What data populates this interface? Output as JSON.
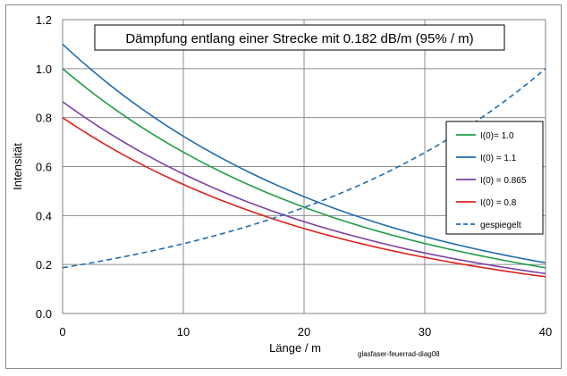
{
  "chart_data": {
    "type": "line",
    "title": "Dämpfung entlang einer Strecke mit 0.182 dB/m  (95% / m)",
    "xlabel": "Länge / m",
    "ylabel": "Intensität",
    "xlim": [
      0,
      40
    ],
    "ylim": [
      0,
      1.2
    ],
    "xticks": [
      "0",
      "10",
      "20",
      "30",
      "40"
    ],
    "yticks": [
      "0.0",
      "0.2",
      "0.4",
      "0.6",
      "0.8",
      "1.0",
      "1.2"
    ],
    "grid": true,
    "legend_position": "right",
    "x": [
      0,
      5,
      10,
      15,
      20,
      25,
      30,
      35,
      40
    ],
    "series": [
      {
        "name": "I(0)= 1.0",
        "color": "#1f9e48",
        "dash": false,
        "values": [
          1.0,
          0.811,
          0.659,
          0.535,
          0.434,
          0.352,
          0.286,
          0.232,
          0.187
        ]
      },
      {
        "name": "I(0) = 1.1",
        "color": "#1f6cb0",
        "dash": false,
        "values": [
          1.1,
          0.892,
          0.724,
          0.588,
          0.477,
          0.387,
          0.314,
          0.255,
          0.207
        ]
      },
      {
        "name": "I(0) = 0.865",
        "color": "#7b3fa6",
        "dash": false,
        "values": [
          0.865,
          0.702,
          0.57,
          0.462,
          0.375,
          0.305,
          0.247,
          0.201,
          0.163
        ]
      },
      {
        "name": "I(0) = 0.8",
        "color": "#e0201b",
        "dash": false,
        "values": [
          0.8,
          0.649,
          0.527,
          0.428,
          0.347,
          0.282,
          0.229,
          0.186,
          0.15
        ]
      },
      {
        "name": "gespiegelt",
        "color": "#1f6cb0",
        "dash": true,
        "values": [
          0.187,
          0.231,
          0.285,
          0.351,
          0.433,
          0.533,
          0.657,
          0.81,
          1.0
        ]
      }
    ]
  },
  "credit": "glasfaser-feuerrad-diag08"
}
